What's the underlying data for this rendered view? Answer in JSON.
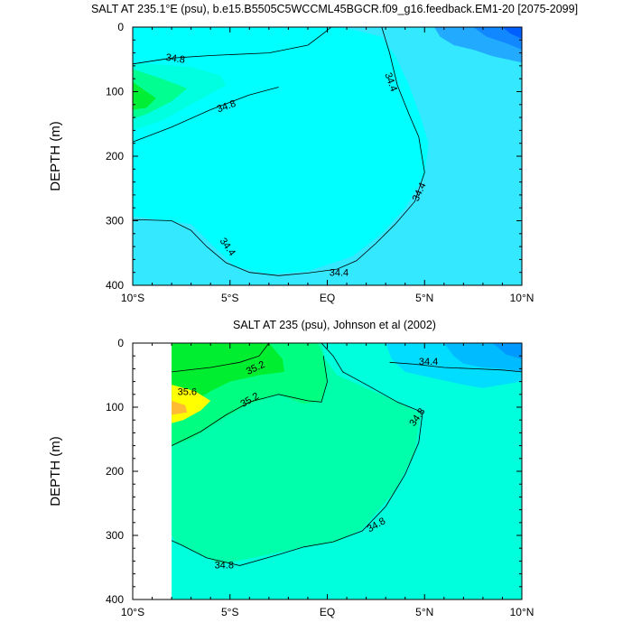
{
  "chart_data": [
    {
      "type": "heatmap",
      "title": "SALT AT 235.1°E (psu), b.e15.B5505C5WCCML45BGCR.f09_g16.feedback.EM1-20 [2075-2099]",
      "ylabel": "DEPTH (m)",
      "xlabel": "",
      "x_tick_labels": [
        "10°S",
        "5°S",
        "EQ",
        "5°N",
        "10°N"
      ],
      "x_tick_values": [
        -10,
        -5,
        0,
        5,
        10
      ],
      "y_tick_labels": [
        "0",
        "100",
        "200",
        "300",
        "400"
      ],
      "y_tick_values": [
        0,
        100,
        200,
        300,
        400
      ],
      "xlim": [
        -10,
        10
      ],
      "ylim": [
        400,
        0
      ],
      "background_color": "#33e8ff",
      "filled_regions": [
        {
          "color": "#00ffff",
          "points": [
            [
              -10,
              0
            ],
            [
              0.8,
              0
            ],
            [
              2.8,
              15
            ],
            [
              3.5,
              45
            ],
            [
              4.2,
              90
            ],
            [
              4.8,
              140
            ],
            [
              5.2,
              180
            ],
            [
              5,
              230
            ],
            [
              4,
              280
            ],
            [
              2.8,
              320
            ],
            [
              1.3,
              355
            ],
            [
              -1,
              378
            ],
            [
              -3,
              383
            ],
            [
              -4.8,
              370
            ],
            [
              -6,
              335
            ],
            [
              -7,
              305
            ],
            [
              -10,
              293
            ]
          ]
        },
        {
          "color": "#00ffe0",
          "points": [
            [
              -10,
              55
            ],
            [
              -7,
              62
            ],
            [
              -5.5,
              75
            ],
            [
              -5.2,
              90
            ],
            [
              -7,
              120
            ],
            [
              -8.5,
              145
            ],
            [
              -10,
              160
            ]
          ]
        },
        {
          "color": "#00ff90",
          "points": [
            [
              -10,
              65
            ],
            [
              -8.5,
              80
            ],
            [
              -7.2,
              95
            ],
            [
              -8,
              115
            ],
            [
              -9.3,
              135
            ],
            [
              -10,
              142
            ]
          ]
        },
        {
          "color": "#00ee33",
          "points": [
            [
              -10,
              85
            ],
            [
              -9.3,
              100
            ],
            [
              -8.8,
              110
            ],
            [
              -9.3,
              125
            ],
            [
              -10,
              128
            ]
          ]
        },
        {
          "color": "#22aaff",
          "points": [
            [
              5.5,
              0
            ],
            [
              10,
              0
            ],
            [
              10,
              55
            ],
            [
              8.5,
              45
            ],
            [
              7.5,
              35
            ],
            [
              6.5,
              28
            ],
            [
              5.8,
              15
            ]
          ]
        },
        {
          "color": "#1188ff",
          "points": [
            [
              7.5,
              0
            ],
            [
              10,
              0
            ],
            [
              10,
              35
            ],
            [
              9.2,
              25
            ],
            [
              8.2,
              15
            ]
          ]
        },
        {
          "color": "#0060ff",
          "points": [
            [
              9,
              0
            ],
            [
              10,
              0
            ],
            [
              10,
              18
            ],
            [
              9.4,
              10
            ]
          ]
        }
      ],
      "contour_lines": [
        {
          "level": "34.8",
          "label_pos": [
            -7.8,
            48
          ],
          "label_angle": 8,
          "points": [
            [
              -10,
              57
            ],
            [
              -8,
              48
            ],
            [
              -6,
              44
            ],
            [
              -3,
              40
            ],
            [
              -1,
              28
            ],
            [
              -0.2,
              10
            ],
            [
              0.2,
              0
            ]
          ]
        },
        {
          "level": "34.8",
          "label_pos": [
            -5.2,
            122
          ],
          "label_angle": -20,
          "points": [
            [
              -10,
              178
            ],
            [
              -8,
              155
            ],
            [
              -6,
              128
            ],
            [
              -4,
              105
            ],
            [
              -2.5,
              93
            ]
          ]
        },
        {
          "level": "34.4",
          "label_pos": [
            3.3,
            85
          ],
          "label_angle": 70,
          "points": [
            [
              2.8,
              0
            ],
            [
              3.2,
              40
            ],
            [
              3.6,
              90
            ],
            [
              4.2,
              135
            ],
            [
              4.7,
              170
            ],
            [
              5,
              225
            ],
            [
              4.5,
              270
            ],
            [
              3.5,
              305
            ],
            [
              2.5,
              335
            ],
            [
              1.5,
              362
            ],
            [
              0.5,
              375
            ],
            [
              -1,
              381
            ]
          ]
        },
        {
          "label_pos": [
            4.7,
            255
          ],
          "label_angle": -65,
          "label": "34.4",
          "points": []
        },
        {
          "level": "34.4",
          "label_pos": [
            0.6,
            380
          ],
          "label_angle": 0,
          "points": [
            [
              -1,
              381
            ],
            [
              -2.5,
              385
            ],
            [
              -4,
              380
            ],
            [
              -5.2,
              365
            ],
            [
              -6.2,
              340
            ],
            [
              -7,
              315
            ],
            [
              -8,
              300
            ],
            [
              -10,
              298
            ]
          ]
        },
        {
          "label_pos": [
            -5.1,
            340
          ],
          "label_angle": 55,
          "label": "34.4",
          "points": []
        }
      ]
    },
    {
      "type": "heatmap",
      "title": "SALT AT 235 (psu), Johnson et al (2002)",
      "ylabel": "DEPTH (m)",
      "xlabel": "",
      "x_tick_labels": [
        "10°S",
        "5°S",
        "EQ",
        "5°N",
        "10°N"
      ],
      "x_tick_values": [
        -10,
        -5,
        0,
        5,
        10
      ],
      "y_tick_labels": [
        "0",
        "100",
        "200",
        "300",
        "400"
      ],
      "y_tick_values": [
        0,
        100,
        200,
        300,
        400
      ],
      "xlim": [
        -10,
        10
      ],
      "ylim": [
        400,
        0
      ],
      "data_xmin": -8,
      "background_color": "#00ffdd",
      "filled_regions": [
        {
          "color": "#00ffaa",
          "points": [
            [
              -8,
              0
            ],
            [
              -0.3,
              0
            ],
            [
              -0.1,
              25
            ],
            [
              0.5,
              50
            ],
            [
              2,
              70
            ],
            [
              3.5,
              90
            ],
            [
              4.8,
              110
            ],
            [
              4.5,
              170
            ],
            [
              3.5,
              230
            ],
            [
              1.8,
              290
            ],
            [
              0.5,
              310
            ],
            [
              -1.5,
              320
            ],
            [
              -3,
              330
            ],
            [
              -5.5,
              345
            ],
            [
              -6.5,
              330
            ],
            [
              -7.8,
              310
            ],
            [
              -8,
              300
            ]
          ]
        },
        {
          "color": "#00ff80",
          "points": [
            [
              -8,
              0
            ],
            [
              -0.5,
              0
            ],
            [
              -0.2,
              20
            ],
            [
              0,
              55
            ],
            [
              -0.3,
              90
            ],
            [
              -1.2,
              95
            ],
            [
              -2.5,
              80
            ],
            [
              -4,
              95
            ],
            [
              -5.5,
              120
            ],
            [
              -7,
              150
            ],
            [
              -8,
              160
            ]
          ]
        },
        {
          "color": "#00ee30",
          "points": [
            [
              -8,
              0
            ],
            [
              -3,
              0
            ],
            [
              -2.3,
              25
            ],
            [
              -2.2,
              45
            ],
            [
              -3.5,
              50
            ],
            [
              -5,
              60
            ],
            [
              -6,
              75
            ],
            [
              -7,
              95
            ],
            [
              -8,
              110
            ]
          ]
        },
        {
          "color": "#ffff00",
          "points": [
            [
              -8,
              65
            ],
            [
              -6.8,
              75
            ],
            [
              -6,
              90
            ],
            [
              -6.5,
              105
            ],
            [
              -7.4,
              120
            ],
            [
              -8,
              125
            ]
          ]
        },
        {
          "color": "#ffbb33",
          "points": [
            [
              -8,
              90
            ],
            [
              -7.3,
              97
            ],
            [
              -7.2,
              108
            ],
            [
              -8,
              112
            ]
          ]
        },
        {
          "color": "#00ddff",
          "points": [
            [
              3,
              0
            ],
            [
              10,
              0
            ],
            [
              10,
              60
            ],
            [
              9,
              65
            ],
            [
              8,
              70
            ],
            [
              7,
              65
            ],
            [
              5.5,
              55
            ],
            [
              4,
              45
            ],
            [
              3.3,
              25
            ]
          ]
        },
        {
          "color": "#00bbff",
          "points": [
            [
              6,
              0
            ],
            [
              10,
              0
            ],
            [
              10,
              45
            ],
            [
              9,
              40
            ],
            [
              8,
              38
            ],
            [
              7,
              32
            ],
            [
              6.5,
              20
            ]
          ]
        },
        {
          "color": "#0099ff",
          "points": [
            [
              8.5,
              0
            ],
            [
              10,
              0
            ],
            [
              10,
              25
            ],
            [
              9.2,
              18
            ]
          ]
        }
      ],
      "contour_lines": [
        {
          "level": "35.2",
          "label_pos": [
            -3.7,
            38
          ],
          "label_angle": -25,
          "points": [
            [
              -8,
              45
            ],
            [
              -6,
              38
            ],
            [
              -4.5,
              30
            ],
            [
              -3.5,
              20
            ],
            [
              -3,
              0
            ]
          ]
        },
        {
          "level": "35.6",
          "label_pos": [
            -7.2,
            75
          ],
          "label_angle": 0,
          "points": []
        },
        {
          "level": "35.2",
          "label_pos": [
            -4,
            88
          ],
          "label_angle": -30,
          "points": [
            [
              -8,
              160
            ],
            [
              -6.5,
              138
            ],
            [
              -5.2,
              112
            ],
            [
              -4,
              92
            ],
            [
              -2.5,
              80
            ],
            [
              -1,
              90
            ],
            [
              -0.3,
              92
            ],
            [
              0,
              60
            ],
            [
              -0.2,
              20
            ]
          ]
        },
        {
          "level": "34.8",
          "label_pos": [
            4.6,
            115
          ],
          "label_angle": -55,
          "points": [
            [
              -0.3,
              0
            ],
            [
              0.3,
              20
            ],
            [
              0.8,
              45
            ],
            [
              2.2,
              68
            ],
            [
              3.6,
              92
            ],
            [
              4.9,
              108
            ],
            [
              4.7,
              155
            ],
            [
              4,
              205
            ],
            [
              3,
              255
            ],
            [
              1.8,
              293
            ],
            [
              0.3,
              310
            ],
            [
              -1.2,
              318
            ],
            [
              -2.5,
              330
            ],
            [
              -4.5,
              347
            ],
            [
              -6.2,
              335
            ],
            [
              -7.5,
              315
            ],
            [
              -8,
              308
            ]
          ]
        },
        {
          "level": "34.8",
          "label_pos": [
            2.5,
            283
          ],
          "label_angle": -30,
          "points": []
        },
        {
          "level": "34.8",
          "label_pos": [
            -5.3,
            346
          ],
          "label_angle": 0,
          "points": []
        },
        {
          "level": "34.4",
          "label_pos": [
            5.2,
            28
          ],
          "label_angle": 0,
          "points": [
            [
              3.2,
              30
            ],
            [
              4.5,
              33
            ],
            [
              6,
              38
            ],
            [
              7.5,
              40
            ],
            [
              9,
              42
            ],
            [
              10,
              45
            ]
          ]
        }
      ]
    }
  ]
}
